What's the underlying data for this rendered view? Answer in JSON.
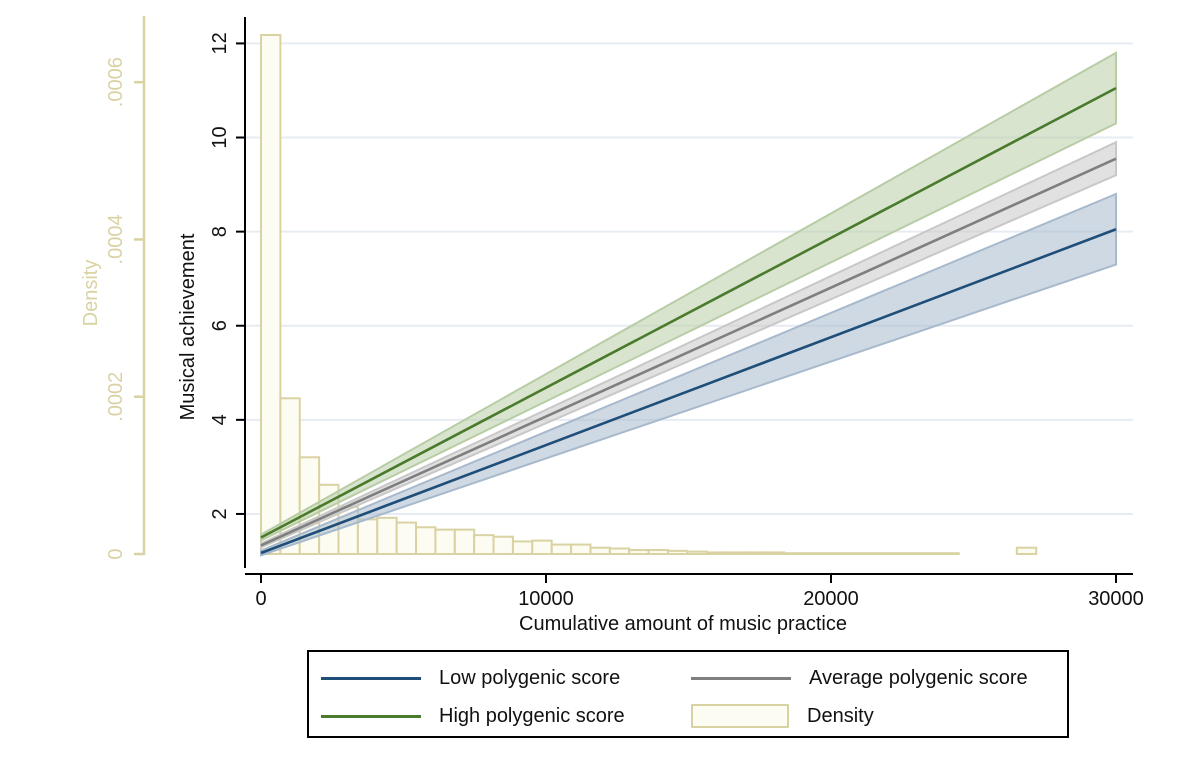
{
  "chart_data": {
    "type": "line",
    "xlabel": "Cumulative amount of music practice",
    "ylabel": "Musical achievement",
    "y2label": "Density",
    "xlim": [
      0,
      30000
    ],
    "ylim": [
      1.0,
      12.2
    ],
    "y2lim": [
      0,
      0.00066
    ],
    "x_ticks": [
      0,
      10000,
      20000,
      30000
    ],
    "x_tick_labels": [
      "0",
      "10000",
      "20000",
      "30000"
    ],
    "y_ticks": [
      2,
      4,
      6,
      8,
      10,
      12
    ],
    "y_tick_labels": [
      "2",
      "4",
      "6",
      "8",
      "10",
      "12"
    ],
    "y2_ticks": [
      0,
      0.0002,
      0.0004,
      0.0006
    ],
    "y2_tick_labels": [
      "0",
      ".0002",
      ".0004",
      ".0006"
    ],
    "grid": "horizontal",
    "legend_position": "bottom",
    "series": [
      {
        "name": "Low polygenic score",
        "color": "#1f4e79",
        "band_color": "#a7b9cc",
        "x": [
          0,
          30000
        ],
        "y": [
          1.17,
          8.05
        ],
        "lower": [
          1.12,
          7.3
        ],
        "upper": [
          1.22,
          8.8
        ]
      },
      {
        "name": "Average polygenic score",
        "color": "#7f7f7f",
        "band_color": "#c8c8c8",
        "x": [
          0,
          30000
        ],
        "y": [
          1.33,
          9.55
        ],
        "lower": [
          1.29,
          9.2
        ],
        "upper": [
          1.37,
          9.9
        ]
      },
      {
        "name": "High polygenic score",
        "color": "#4a7a2c",
        "band_color": "#b8cda6",
        "x": [
          0,
          30000
        ],
        "y": [
          1.5,
          11.05
        ],
        "lower": [
          1.44,
          10.3
        ],
        "upper": [
          1.56,
          11.8
        ]
      }
    ],
    "histogram": {
      "name": "Density",
      "fill": "#fdfcf2",
      "stroke": "#d9d2a2",
      "bin_width": 680,
      "bin_starts": [
        0,
        680,
        1360,
        2040,
        2720,
        3400,
        4080,
        4760,
        5440,
        6120,
        6800,
        7480,
        8160,
        8840,
        9520,
        10200,
        10880,
        11560,
        12240,
        12920,
        13600,
        14280,
        14960,
        15640,
        16320,
        17000,
        17680,
        18360,
        19040,
        19720,
        20400,
        21080,
        21760,
        22440,
        23120,
        23800,
        26520
      ],
      "densities": [
        0.00066,
        0.000198,
        0.000123,
        8.8e-05,
        6e-05,
        4.4e-05,
        4.6e-05,
        4e-05,
        3.4e-05,
        3.1e-05,
        3.1e-05,
        2.4e-05,
        2.2e-05,
        1.6e-05,
        1.7e-05,
        1.2e-05,
        1.2e-05,
        8e-06,
        7e-06,
        5e-06,
        5e-06,
        4e-06,
        3e-06,
        2e-06,
        2e-06,
        2e-06,
        2e-06,
        1e-06,
        1e-06,
        1e-06,
        1e-06,
        1e-06,
        1e-06,
        1e-06,
        1e-06,
        1e-06,
        8e-06
      ]
    }
  },
  "legend": {
    "items": [
      {
        "label": "Low polygenic score",
        "kind": "line",
        "color": "#1f4e79"
      },
      {
        "label": "Average polygenic score",
        "kind": "line",
        "color": "#7f7f7f"
      },
      {
        "label": "High polygenic score",
        "kind": "line",
        "color": "#4a7a2c"
      },
      {
        "label": "Density",
        "kind": "box",
        "color": "#d9d2a2"
      }
    ]
  }
}
